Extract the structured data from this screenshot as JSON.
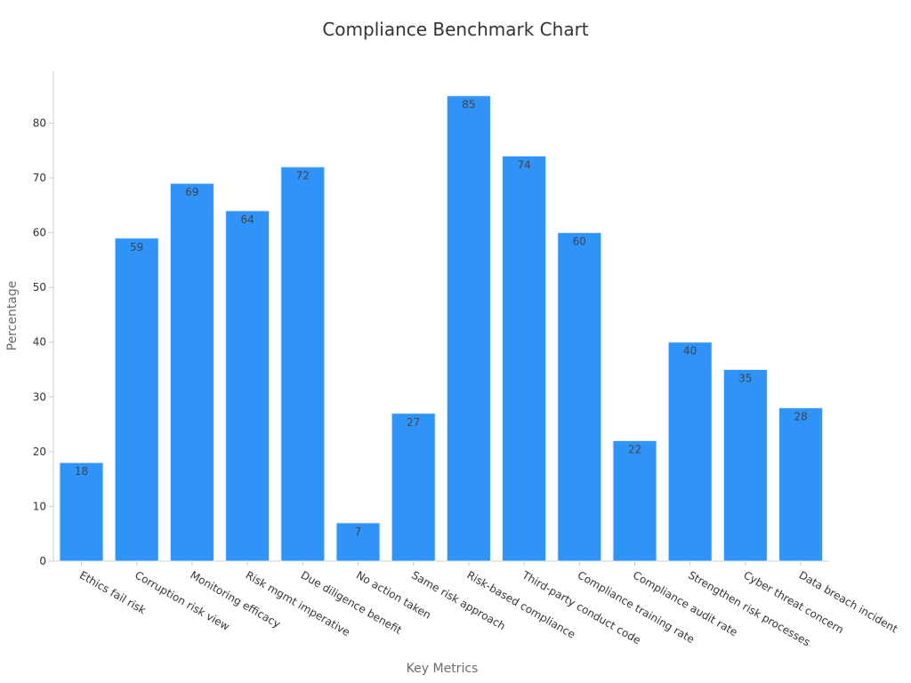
{
  "chart_data": {
    "type": "bar",
    "title": "Compliance Benchmark Chart",
    "xlabel": "Key Metrics",
    "ylabel": "Percentage",
    "categories": [
      "Ethics fail risk",
      "Corruption risk view",
      "Monitoring efficacy",
      "Risk mgmt imperative",
      "Due diligence benefit",
      "No action taken",
      "Same risk approach",
      "Risk-based compliance",
      "Third-party conduct code",
      "Compliance training rate",
      "Compliance audit rate",
      "Strengthen risk processes",
      "Cyber threat concern",
      "Data breach incident"
    ],
    "values": [
      18,
      59,
      69,
      64,
      72,
      7,
      27,
      85,
      74,
      60,
      22,
      40,
      35,
      28
    ],
    "ylim": [
      0,
      89.5
    ],
    "yticks": [
      0,
      10,
      20,
      30,
      40,
      50,
      60,
      70,
      80
    ],
    "grid": false,
    "bar_color": "#2f93f7",
    "axis_color": "#cccccc"
  }
}
